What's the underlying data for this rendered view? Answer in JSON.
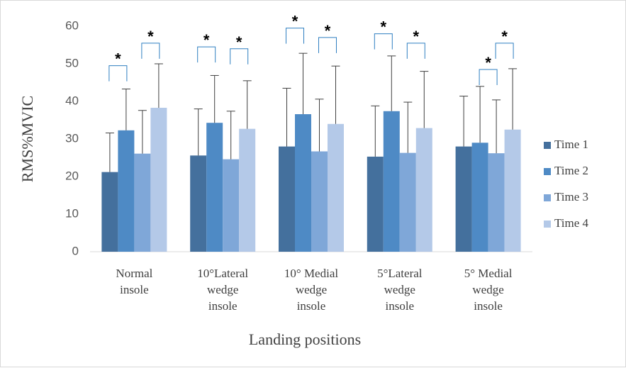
{
  "chart_data": {
    "type": "bar",
    "xlabel": "Landing positions",
    "ylabel": "RMS%MVIC",
    "ylim": [
      0,
      60
    ],
    "yticks": [
      0,
      10,
      20,
      30,
      40,
      50,
      60
    ],
    "grid": false,
    "legend_position": "right",
    "categories": [
      [
        "Normal",
        "insole"
      ],
      [
        "10°Lateral",
        "wedge",
        "insole"
      ],
      [
        "10° Medial",
        "wedge",
        "insole"
      ],
      [
        "5°Lateral",
        "wedge",
        "insole"
      ],
      [
        "5° Medial",
        "wedge",
        "insole"
      ]
    ],
    "series": [
      {
        "name": "Time 1",
        "color": "#44709d",
        "values": [
          21.2,
          25.6,
          28.0,
          25.3,
          28.0
        ],
        "error": [
          10.4,
          12.4,
          15.5,
          13.5,
          13.4
        ]
      },
      {
        "name": "Time 2",
        "color": "#4e8ac5",
        "values": [
          32.3,
          34.3,
          36.6,
          37.4,
          29.0
        ],
        "error": [
          11.0,
          12.6,
          16.2,
          14.7,
          15.0
        ]
      },
      {
        "name": "Time 3",
        "color": "#7fa7d8",
        "values": [
          26.1,
          24.6,
          26.7,
          26.3,
          26.2
        ],
        "error": [
          11.5,
          12.8,
          13.9,
          13.5,
          14.2
        ]
      },
      {
        "name": "Time 4",
        "color": "#b4c9e8",
        "values": [
          38.3,
          32.7,
          34.0,
          32.9,
          32.5
        ],
        "error": [
          11.7,
          12.8,
          15.4,
          15.1,
          16.2
        ]
      }
    ],
    "significance": [
      {
        "category": 0,
        "from": 0,
        "to": 1,
        "y": 49.5,
        "label": "*"
      },
      {
        "category": 0,
        "from": 2,
        "to": 3,
        "y": 55.5,
        "label": "*"
      },
      {
        "category": 1,
        "from": 0,
        "to": 1,
        "y": 54.5,
        "label": "*"
      },
      {
        "category": 1,
        "from": 2,
        "to": 3,
        "y": 54.0,
        "label": "*"
      },
      {
        "category": 2,
        "from": 0,
        "to": 1,
        "y": 59.5,
        "label": "*"
      },
      {
        "category": 2,
        "from": 2,
        "to": 3,
        "y": 57.0,
        "label": "*"
      },
      {
        "category": 3,
        "from": 0,
        "to": 1,
        "y": 58.0,
        "label": "*"
      },
      {
        "category": 3,
        "from": 2,
        "to": 3,
        "y": 55.5,
        "label": "*"
      },
      {
        "category": 4,
        "from": 1,
        "to": 2,
        "y": 48.5,
        "label": "*"
      },
      {
        "category": 4,
        "from": 2,
        "to": 3,
        "y": 55.5,
        "label": "*"
      }
    ]
  }
}
